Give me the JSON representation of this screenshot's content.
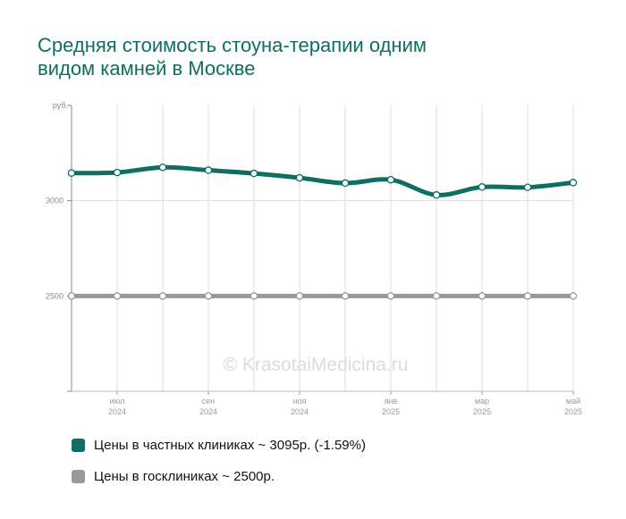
{
  "chart_data": {
    "type": "line",
    "title_lines": [
      "Средняя стоимость стоуна-терапии одним",
      "видом камней в Москве"
    ],
    "y_unit": "руб.",
    "y_ticks": [
      {
        "value": 3000,
        "label": "3000"
      },
      {
        "value": 2500,
        "label": "2500"
      }
    ],
    "ylim": [
      2000,
      3500
    ],
    "x_ticks": [
      {
        "index": 1,
        "month": "июл",
        "year": "2024"
      },
      {
        "index": 3,
        "month": "сен",
        "year": "2024"
      },
      {
        "index": 5,
        "month": "ноя",
        "year": "2024"
      },
      {
        "index": 7,
        "month": "янв",
        "year": "2025"
      },
      {
        "index": 9,
        "month": "мар",
        "year": "2025"
      },
      {
        "index": 11,
        "month": "май",
        "year": "2025"
      }
    ],
    "x_count": 12,
    "series": [
      {
        "name": "Цены в частных клиниках ~ 3095р. (-1.59%)",
        "color": "#0f6e63",
        "values": [
          3145,
          3148,
          3175,
          3160,
          3143,
          3120,
          3092,
          3110,
          3030,
          3072,
          3070,
          3095
        ]
      },
      {
        "name": "Цены в госклиниках ~ 2500р.",
        "color": "#999999",
        "values": [
          2500,
          2500,
          2500,
          2500,
          2500,
          2500,
          2500,
          2500,
          2500,
          2500,
          2500,
          2500
        ]
      }
    ],
    "grid": true,
    "legend": "bottom-left"
  },
  "watermark": "© KrasotaiMedicina.ru"
}
